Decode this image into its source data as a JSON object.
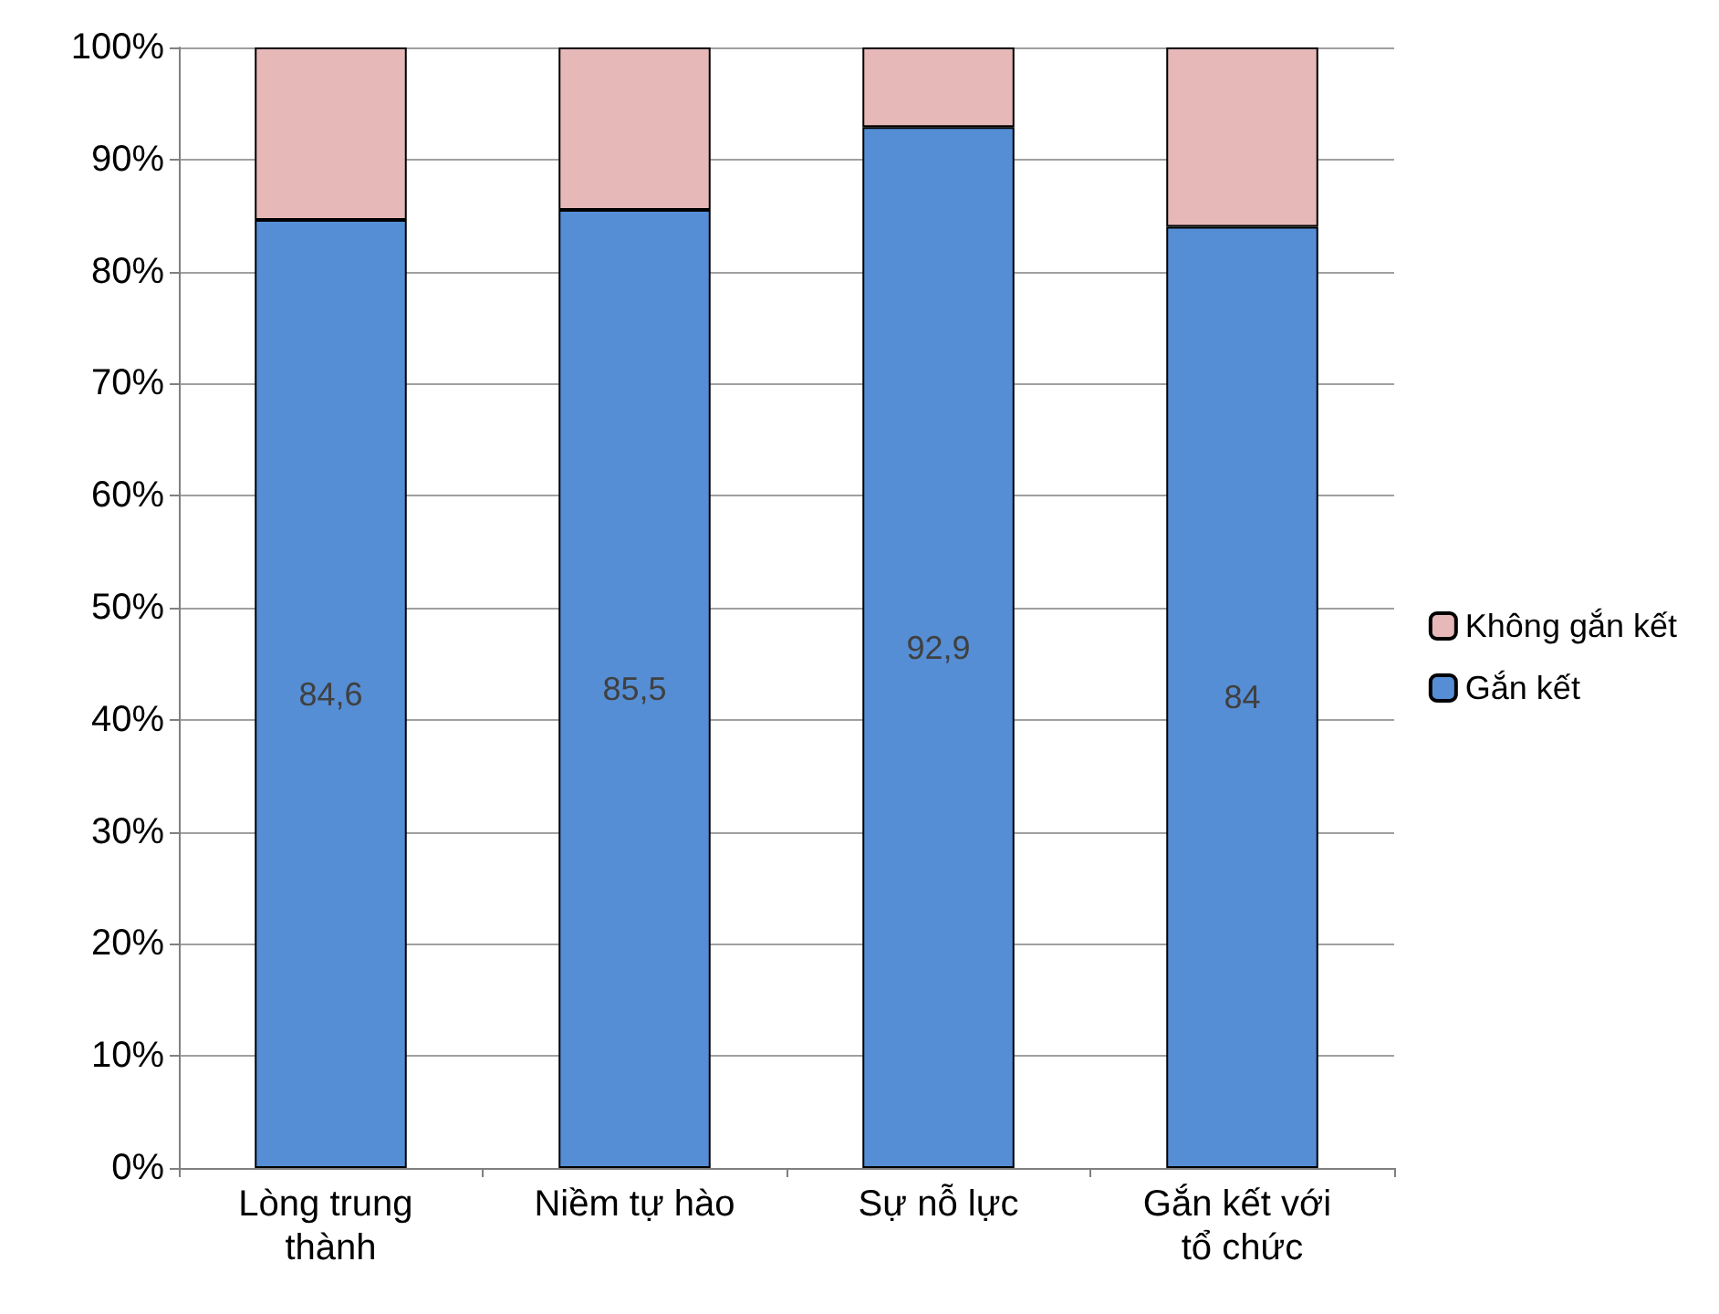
{
  "chart_data": {
    "type": "bar",
    "stacked": true,
    "categories": [
      "Lòng trung thành",
      "Niềm tự hào",
      "Sự nỗ lực",
      "Gắn kết với tổ chức"
    ],
    "series": [
      {
        "name": "Gắn kết",
        "color": "#558ed5",
        "values": [
          84.6,
          85.5,
          92.9,
          84
        ],
        "value_labels": [
          "84,6",
          "85,5",
          "92,9",
          "84"
        ]
      },
      {
        "name": "Không gắn kết",
        "color": "#e6b9b8",
        "values": [
          15.4,
          14.5,
          7.1,
          16
        ]
      }
    ],
    "ylim": [
      0,
      100
    ],
    "yticks": [
      {
        "value": 0,
        "label": "0%"
      },
      {
        "value": 10,
        "label": "10%"
      },
      {
        "value": 20,
        "label": "20%"
      },
      {
        "value": 30,
        "label": "30%"
      },
      {
        "value": 40,
        "label": "40%"
      },
      {
        "value": 50,
        "label": "50%"
      },
      {
        "value": 60,
        "label": "60%"
      },
      {
        "value": 70,
        "label": "70%"
      },
      {
        "value": 80,
        "label": "80%"
      },
      {
        "value": 90,
        "label": "90%"
      },
      {
        "value": 100,
        "label": "100%"
      }
    ],
    "grid": "y",
    "legend": "right"
  }
}
